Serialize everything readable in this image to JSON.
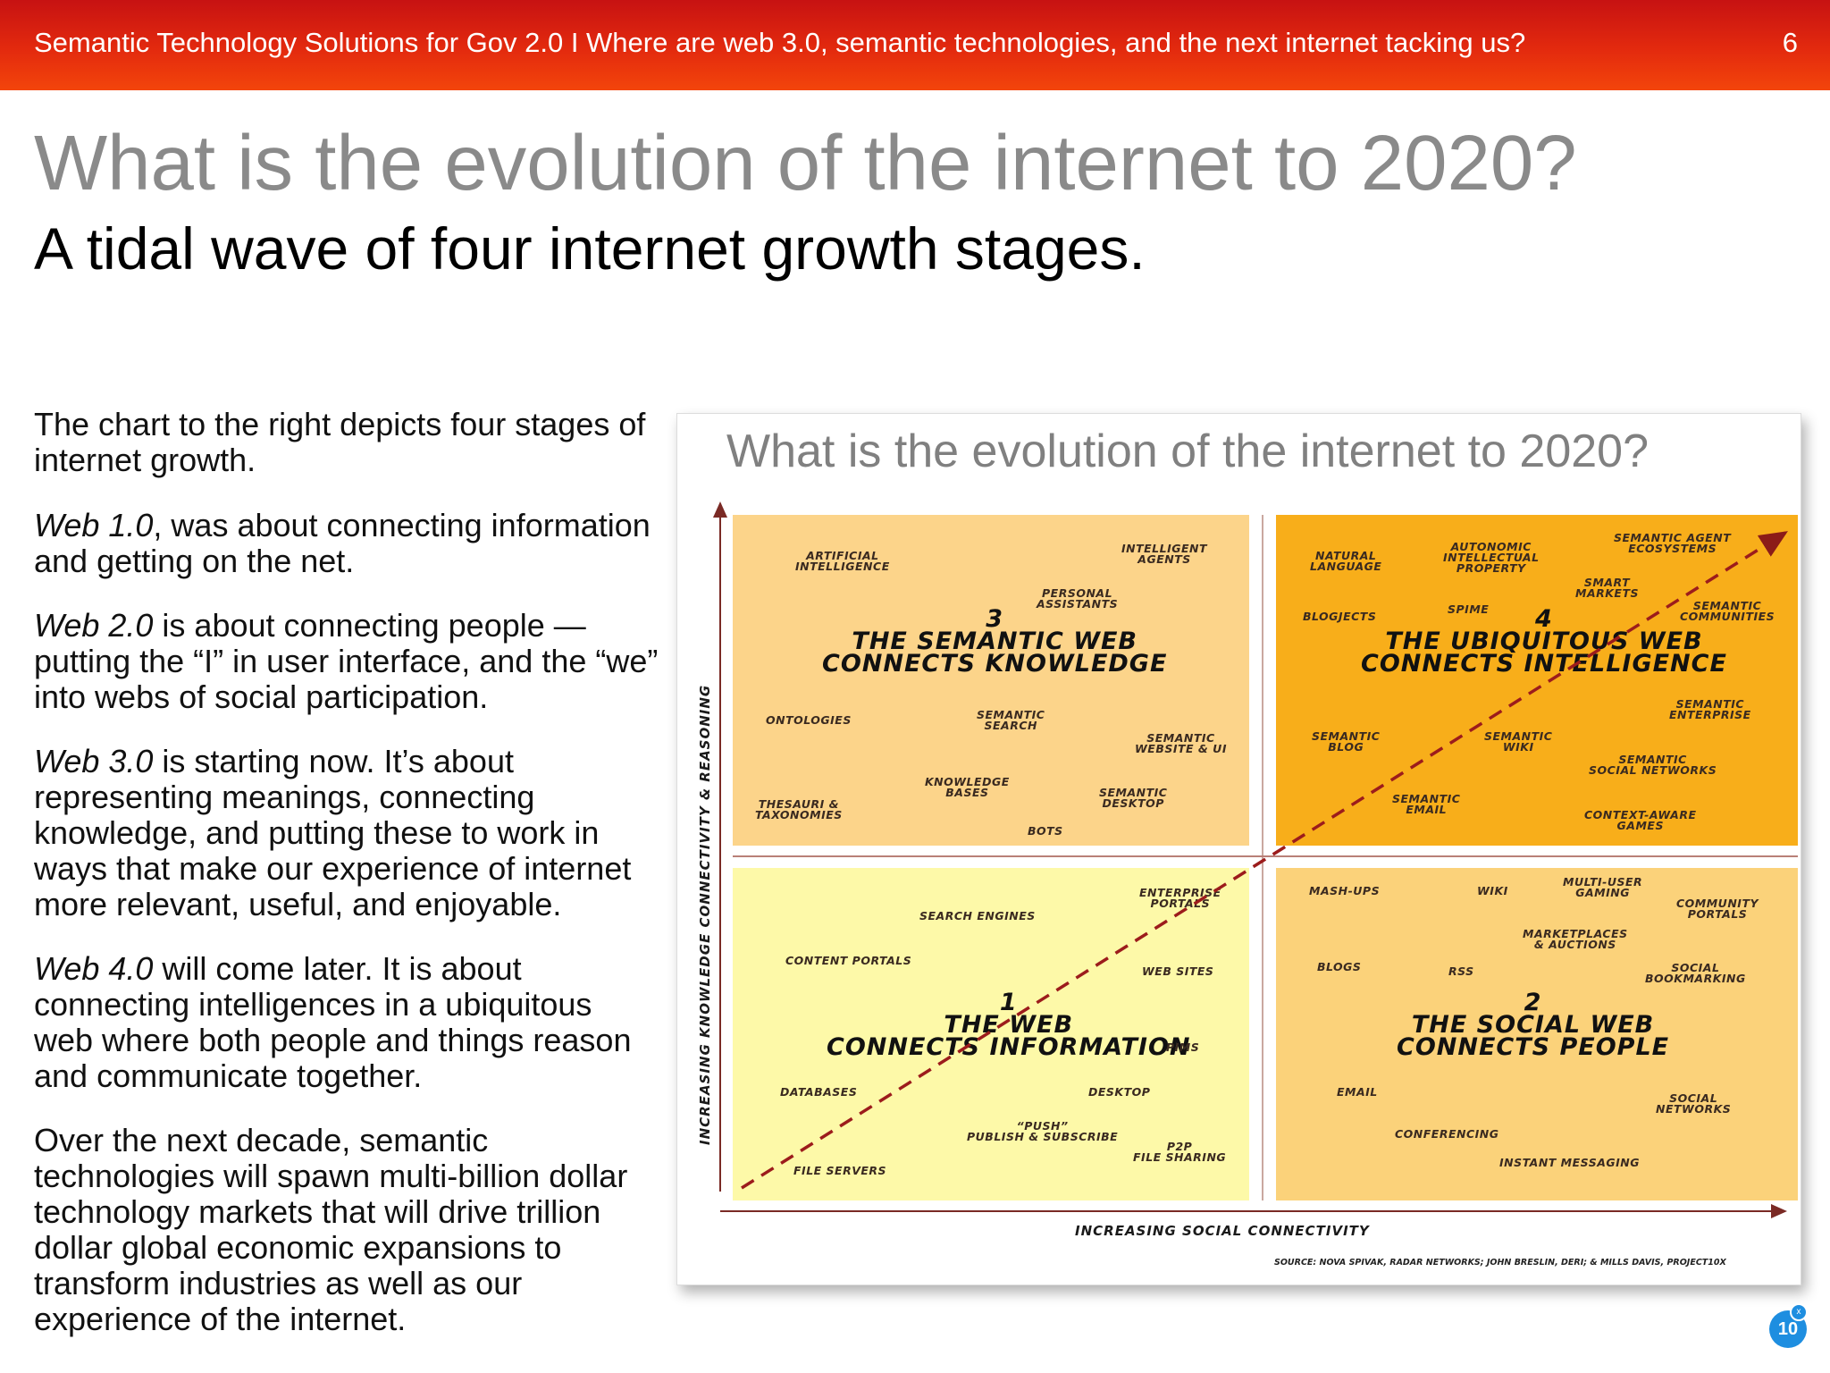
{
  "header": {
    "title": "Semantic Technology Solutions for Gov 2.0 I Where are web 3.0, semantic technologies, and the next internet tacking us?",
    "page_number": "6"
  },
  "slide": {
    "title": "What is the evolution of the internet to 2020?",
    "subtitle": "A tidal wave of four internet growth stages."
  },
  "body": {
    "intro": "The chart to the right depicts four stages of internet growth.",
    "web1_name": "Web 1.0",
    "web1_text": ", was about connecting information and getting on the net.",
    "web2_name": "Web 2.0",
    "web2_text": " is about connecting people — putting the “I” in user interface, and the “we” into webs of social participation.",
    "web3_name": "Web 3.0",
    "web3_text": " is starting now. It’s about representing meanings, connecting knowledge, and putting these to work in ways that make our experience of internet more relevant, useful, and enjoyable.",
    "web4_name": "Web 4.0",
    "web4_text": " will come later. It is about connecting intelligences in a ubiquitous web where both people and things reason and communicate together.",
    "outro": "Over the next decade, semantic technologies will spawn multi-billion dollar technology markets that will drive trillion dollar global economic expansions to transform industries as well as our experience of the internet."
  },
  "chart": {
    "title": "What is the evolution of the internet to 2020?",
    "y_axis": "INCREASING KNOWLEDGE CONNECTIVITY & REASONING",
    "x_axis": "INCREASING SOCIAL CONNECTIVITY",
    "source": "SOURCE: NOVA SPIVAK, RADAR NETWORKS; JOHN BRESLIN, DERI; & MILLS DAVIS, PROJECT10X",
    "stages": {
      "s3": {
        "num": "3",
        "line1": "THE SEMANTIC WEB",
        "line2": "CONNECTS KNOWLEDGE"
      },
      "s4": {
        "num": "4",
        "line1": "THE UBIQUITOUS WEB",
        "line2": "CONNECTS INTELLIGENCE"
      },
      "s1": {
        "num": "1",
        "line1": "THE WEB",
        "line2": "CONNECTS INFORMATION"
      },
      "s2": {
        "num": "2",
        "line1": "THE SOCIAL WEB",
        "line2": "CONNECTS PEOPLE"
      }
    },
    "q3_items": {
      "ai": "ARTIFICIAL\nINTELLIGENCE",
      "agents": "INTELLIGENT\nAGENTS",
      "assistants": "PERSONAL\nASSISTANTS",
      "ontologies": "ONTOLOGIES",
      "search": "SEMANTIC\nSEARCH",
      "website": "SEMANTIC\nWEBSITE & UI",
      "kb": "KNOWLEDGE\nBASES",
      "thesauri": "THESAURI &\nTAXONOMIES",
      "desktop": "SEMANTIC\nDESKTOP",
      "bots": "BOTS"
    },
    "q4_items": {
      "natlang": "NATURAL\nLANGUAGE",
      "autonomic": "AUTONOMIC\nINTELLECTUAL\nPROPERTY",
      "agent_eco": "SEMANTIC AGENT\nECOSYSTEMS",
      "smart": "SMART\nMARKETS",
      "blogjects": "BLOGJECTS",
      "spime": "SPIME",
      "communities": "SEMANTIC\nCOMMUNITIES",
      "enterprise": "SEMANTIC\nENTERPRISE",
      "blog": "SEMANTIC\nBLOG",
      "wiki": "SEMANTIC\nWIKI",
      "social_net": "SEMANTIC\nSOCIAL NETWORKS",
      "email": "SEMANTIC\nEMAIL",
      "context": "CONTEXT-AWARE\nGAMES"
    },
    "q1_items": {
      "portals": "ENTERPRISE\nPORTALS",
      "search": "SEARCH ENGINES",
      "content": "CONTENT PORTALS",
      "websites": "WEB SITES",
      "pims": "PIMS",
      "databases": "DATABASES",
      "desktop": "DESKTOP",
      "push": "“PUSH”\nPUBLISH & SUBSCRIBE",
      "p2p": "P2P\nFILE SHARING",
      "fileservers": "FILE SERVERS"
    },
    "q2_items": {
      "mashups": "MASH-UPS",
      "wiki": "WIKI",
      "multiuser": "MULTI-USER\nGAMING",
      "community": "COMMUNITY\nPORTALS",
      "marketplaces": "MARKETPLACES\n& AUCTIONS",
      "blogs": "BLOGS",
      "rss": "RSS",
      "bookmarking": "SOCIAL\nBOOKMARKING",
      "email": "EMAIL",
      "social": "SOCIAL\nNETWORKS",
      "conferencing": "CONFERENCING",
      "im": "INSTANT MESSAGING"
    }
  },
  "badge": {
    "label": "10",
    "close": "x"
  }
}
